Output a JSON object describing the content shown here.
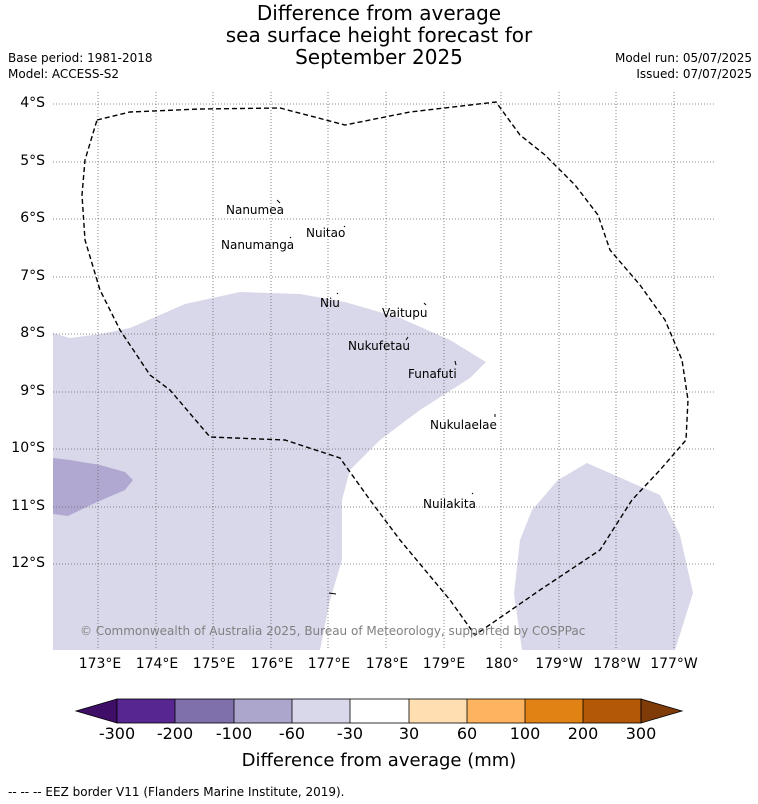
{
  "title": {
    "line1": "Difference from average",
    "line2": "sea surface height forecast for",
    "line3": "September 2025"
  },
  "meta": {
    "base_period": "Base period: 1981-2018",
    "model": "Model: ACCESS-S2",
    "model_run": "Model run: 05/07/2025",
    "issued": "Issued: 07/07/2025"
  },
  "map": {
    "lat_labels": [
      "4°S",
      "5°S",
      "6°S",
      "7°S",
      "8°S",
      "9°S",
      "10°S",
      "11°S",
      "12°S"
    ],
    "lon_labels": [
      "173°E",
      "174°E",
      "175°E",
      "176°E",
      "177°E",
      "178°E",
      "179°E",
      "180°",
      "179°W",
      "178°W",
      "177°W"
    ],
    "islands": [
      "Nanumea",
      "Nuitao",
      "Nanumanga",
      "Niu",
      "Vaitupu",
      "Nukufetau",
      "Funafuti",
      "Nukulaelae",
      "Nuilakita"
    ],
    "credit": "© Commonwealth of Australia 2025, Bureau of Meteorology, supported by COSPPac",
    "fill_colors": {
      "light_purple": "#d8d8ea",
      "mid_purple": "#b0a8d0"
    }
  },
  "colorbar": {
    "tick_labels": [
      "-300",
      "-200",
      "-100",
      "-60",
      "-30",
      "30",
      "60",
      "100",
      "200",
      "300"
    ],
    "colors": [
      "#3f0f68",
      "#582690",
      "#7f6faa",
      "#aca5cc",
      "#d8d8ea",
      "#ffffff",
      "#ffdfb2",
      "#fdb35f",
      "#e08214",
      "#b35806",
      "#7f3b08"
    ],
    "title": "Difference from average (mm)"
  },
  "footer": "-- -- -- EEZ border V11 (Flanders Marine Institute, 2019)."
}
